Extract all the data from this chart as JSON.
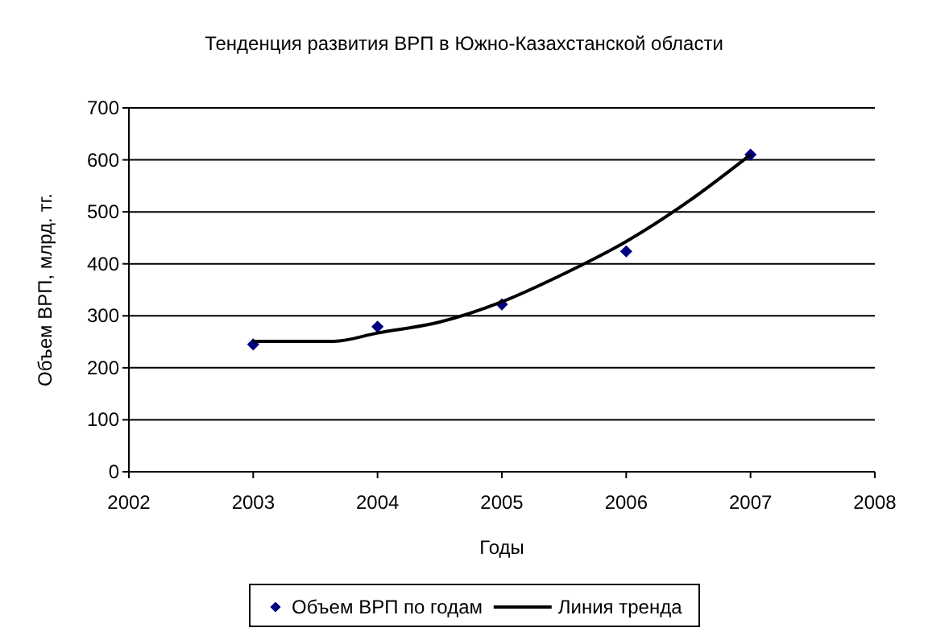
{
  "chart_data": {
    "type": "scatter",
    "title": "Тенденция развития ВРП в Южно-Казахстанской области",
    "xlabel": "Годы",
    "ylabel": "Объем ВРП, млрд. тг.",
    "series": [
      {
        "name": "Объем ВРП по годам",
        "color": "#000080",
        "marker": "diamond",
        "x": [
          2003,
          2004,
          2005,
          2006,
          2007
        ],
        "values": [
          245,
          279,
          322,
          424,
          610
        ]
      },
      {
        "name": "Линия тренда",
        "type": "line",
        "color": "#000000",
        "marker": "none",
        "x": [
          2003,
          2003.65,
          2004,
          2004.5,
          2005,
          2005.5,
          2006,
          2006.5,
          2007
        ],
        "values": [
          251,
          251,
          267,
          288,
          327,
          381,
          443,
          520,
          610
        ]
      }
    ],
    "xlim": [
      2002,
      2008
    ],
    "xticks": [
      2002,
      2003,
      2004,
      2005,
      2006,
      2007,
      2008
    ],
    "ylim": [
      0,
      700
    ],
    "yticks": [
      0,
      100,
      200,
      300,
      400,
      500,
      600,
      700
    ],
    "grid": "y",
    "legend": "bottom"
  }
}
